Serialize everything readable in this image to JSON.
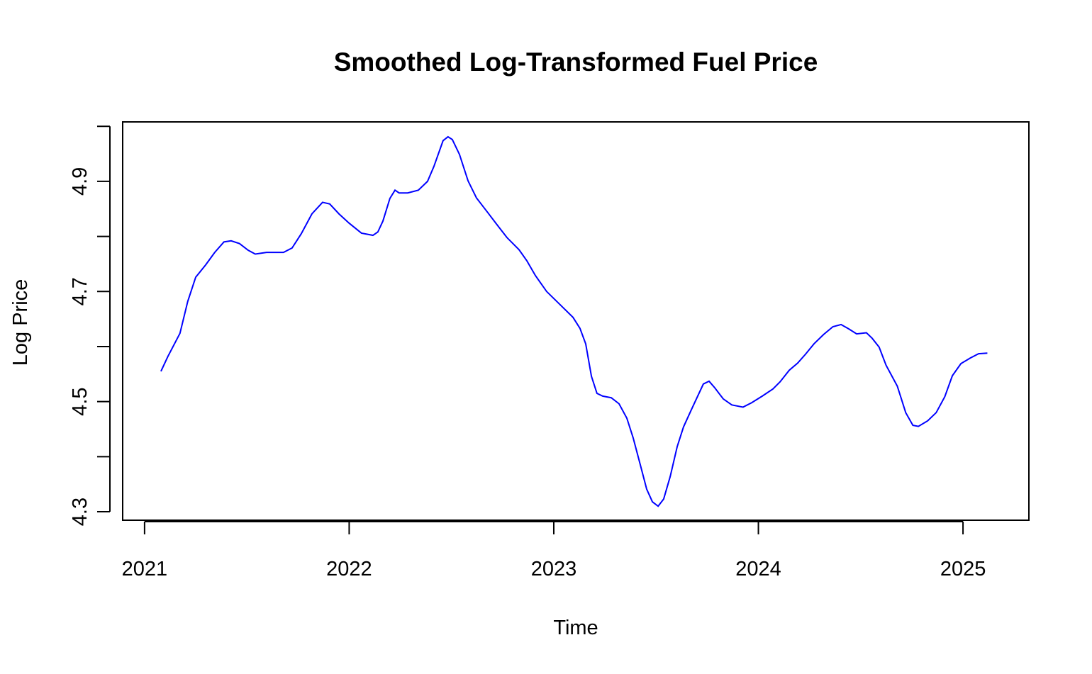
{
  "chart_data": {
    "type": "line",
    "title": "Smoothed Log-Transformed Fuel Price",
    "x_label": "Time",
    "y_label": "Log Price",
    "series": [
      {
        "name": "Log Price",
        "color": "#0000ff",
        "x": [
          2021.08,
          2021.114,
          2021.173,
          2021.211,
          2021.25,
          2021.298,
          2021.343,
          2021.388,
          2021.423,
          2021.464,
          2021.506,
          2021.541,
          2021.596,
          2021.679,
          2021.721,
          2021.766,
          2021.818,
          2021.87,
          2021.905,
          2021.95,
          2022.0,
          2022.06,
          2022.116,
          2022.14,
          2022.165,
          2022.199,
          2022.224,
          2022.244,
          2022.286,
          2022.338,
          2022.383,
          2022.414,
          2022.459,
          2022.483,
          2022.504,
          2022.539,
          2022.581,
          2022.622,
          2022.678,
          2022.719,
          2022.771,
          2022.83,
          2022.868,
          2022.91,
          2022.965,
          2023.031,
          2023.094,
          2023.128,
          2023.156,
          2023.184,
          2023.211,
          2023.239,
          2023.281,
          2023.319,
          2023.357,
          2023.388,
          2023.423,
          2023.454,
          2023.482,
          2023.51,
          2023.537,
          2023.569,
          2023.603,
          2023.634,
          2023.672,
          2023.731,
          2023.759,
          2023.787,
          2023.828,
          2023.87,
          2023.925,
          2023.967,
          2024.019,
          2024.071,
          2024.106,
          2024.151,
          2024.192,
          2024.23,
          2024.272,
          2024.319,
          2024.364,
          2024.404,
          2024.442,
          2024.48,
          2024.528,
          2024.556,
          2024.59,
          2024.624,
          2024.679,
          2024.72,
          2024.755,
          2024.782,
          2024.827,
          2024.869,
          2024.911,
          2024.948,
          2024.99,
          2025.035,
          2025.076,
          2025.119
        ],
        "values": [
          4.555,
          4.582,
          4.624,
          4.682,
          4.726,
          4.748,
          4.771,
          4.79,
          4.792,
          4.787,
          4.775,
          4.768,
          4.771,
          4.771,
          4.779,
          4.805,
          4.841,
          4.862,
          4.859,
          4.841,
          4.824,
          4.806,
          4.802,
          4.808,
          4.828,
          4.869,
          4.884,
          4.879,
          4.879,
          4.884,
          4.9,
          4.927,
          4.974,
          4.981,
          4.976,
          4.949,
          4.901,
          4.87,
          4.843,
          4.823,
          4.798,
          4.776,
          4.756,
          4.729,
          4.7,
          4.676,
          4.653,
          4.633,
          4.605,
          4.546,
          4.515,
          4.51,
          4.507,
          4.496,
          4.47,
          4.434,
          4.385,
          4.341,
          4.318,
          4.31,
          4.323,
          4.364,
          4.418,
          4.454,
          4.485,
          4.532,
          4.537,
          4.525,
          4.505,
          4.494,
          4.49,
          4.498,
          4.51,
          4.523,
          4.536,
          4.557,
          4.57,
          4.586,
          4.605,
          4.622,
          4.636,
          4.64,
          4.632,
          4.623,
          4.625,
          4.615,
          4.599,
          4.566,
          4.528,
          4.48,
          4.457,
          4.455,
          4.465,
          4.48,
          4.509,
          4.547,
          4.569,
          4.579,
          4.587,
          4.588
        ]
      }
    ],
    "xlim": [
      2020.893,
      2025.322
    ],
    "xticks": [
      2021,
      2022,
      2023,
      2024,
      2025
    ],
    "ylim": [
      4.2846,
      5.008
    ],
    "yticks": [
      4.3,
      4.5,
      4.7,
      4.9
    ],
    "yticks_unlabeled": [
      4.4,
      4.6,
      4.8,
      5.0
    ]
  }
}
